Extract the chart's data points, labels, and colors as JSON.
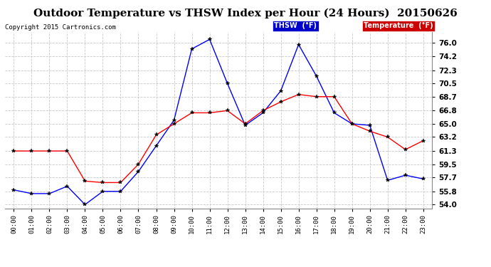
{
  "title": "Outdoor Temperature vs THSW Index per Hour (24 Hours)  20150626",
  "copyright": "Copyright 2015 Cartronics.com",
  "hours": [
    "00:00",
    "01:00",
    "02:00",
    "03:00",
    "04:00",
    "05:00",
    "06:00",
    "07:00",
    "08:00",
    "09:00",
    "10:00",
    "11:00",
    "12:00",
    "13:00",
    "14:00",
    "15:00",
    "16:00",
    "17:00",
    "18:00",
    "19:00",
    "20:00",
    "21:00",
    "22:00",
    "23:00"
  ],
  "thsw": [
    56.0,
    55.5,
    55.5,
    56.5,
    54.0,
    55.8,
    55.8,
    58.5,
    62.0,
    65.5,
    75.2,
    76.5,
    70.5,
    64.8,
    66.5,
    69.5,
    75.8,
    71.5,
    66.5,
    65.0,
    64.8,
    57.3,
    58.0,
    57.5
  ],
  "temperature": [
    61.3,
    61.3,
    61.3,
    61.3,
    57.2,
    57.0,
    57.0,
    59.5,
    63.5,
    65.0,
    66.5,
    66.5,
    66.8,
    65.0,
    66.8,
    68.0,
    69.0,
    68.7,
    68.7,
    65.0,
    64.0,
    63.2,
    61.5,
    62.7
  ],
  "thsw_color": "#0000ff",
  "temp_color": "#ff0000",
  "background_color": "#ffffff",
  "grid_color": "#c8c8c8",
  "title_fontsize": 11,
  "yticks": [
    54.0,
    55.8,
    57.7,
    59.5,
    61.3,
    63.2,
    65.0,
    66.8,
    68.7,
    70.5,
    72.3,
    74.2,
    76.0
  ],
  "ylim": [
    53.5,
    77.5
  ],
  "legend_thsw_bg": "#0000cc",
  "legend_temp_bg": "#cc0000",
  "legend_text_color": "#ffffff"
}
